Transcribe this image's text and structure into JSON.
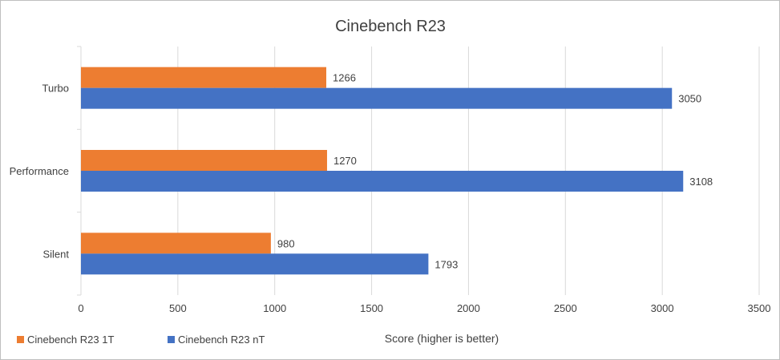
{
  "chart_data": {
    "type": "bar",
    "orientation": "horizontal",
    "title": "Cinebench R23",
    "xlabel": "Score (higher is better)",
    "ylabel": "",
    "categories": [
      "Turbo",
      "Performance",
      "Silent"
    ],
    "series": [
      {
        "name": "Cinebench R23 1T",
        "color": "#ed7d31",
        "values": [
          1266,
          1270,
          980
        ]
      },
      {
        "name": "Cinebench R23 nT",
        "color": "#4472c4",
        "values": [
          3050,
          3108,
          1793
        ]
      }
    ],
    "xlim": [
      0,
      3500
    ],
    "xticks": [
      0,
      500,
      1000,
      1500,
      2000,
      2500,
      3000,
      3500
    ],
    "grid": true,
    "legend_position": "bottom-left"
  }
}
